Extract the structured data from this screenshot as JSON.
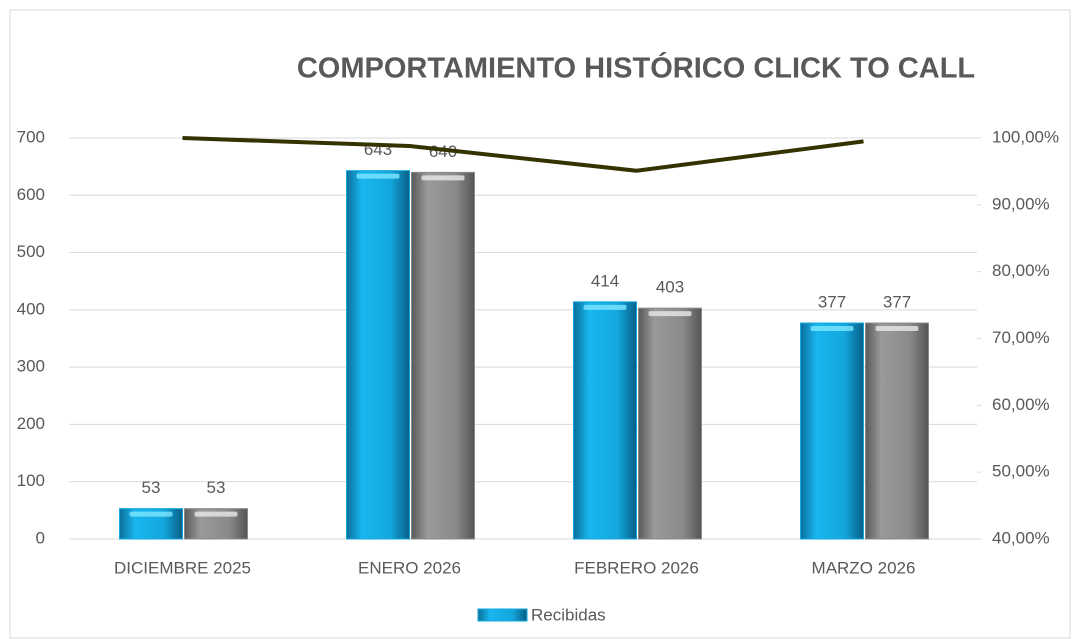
{
  "chart_data": {
    "type": "bar",
    "title": "COMPORTAMIENTO HISTÓRICO CLICK TO CALL",
    "categories": [
      "DICIEMBRE 2025",
      "ENERO 2026",
      "FEBRERO 2026",
      "MARZO 2026"
    ],
    "series": [
      {
        "name": "Recibidas",
        "color": "#12a9e0",
        "values": [
          53,
          643,
          414,
          377
        ]
      },
      {
        "color": "#8a8a8a",
        "values": [
          53,
          640,
          403,
          377
        ]
      },
      {
        "type": "line",
        "axis": "y2",
        "color": "#333300",
        "values": [
          100,
          98.8,
          95.1,
          99.5
        ]
      }
    ],
    "ylim": [
      0,
      700
    ],
    "yticks": [
      0,
      100,
      200,
      300,
      400,
      500,
      600,
      700
    ],
    "y2lim": [
      40,
      100
    ],
    "y2ticks": [
      {
        "value": 40,
        "label": "40,00%"
      },
      {
        "value": 50,
        "label": "50,00%"
      },
      {
        "value": 60,
        "label": "60,00%"
      },
      {
        "value": 70,
        "label": "70,00%"
      },
      {
        "value": 80,
        "label": "80,00%"
      },
      {
        "value": 90,
        "label": "90,00%"
      },
      {
        "value": 100,
        "label": "100,00%"
      }
    ],
    "grid": true,
    "legend": "bottom"
  }
}
